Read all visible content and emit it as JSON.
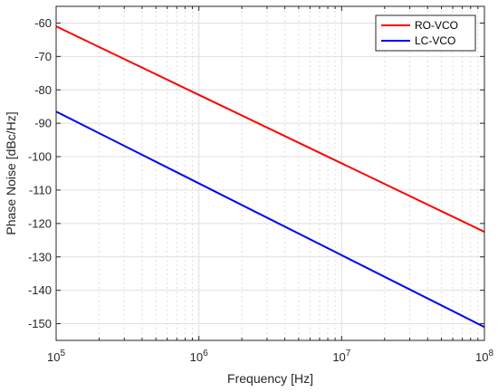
{
  "chart_data": {
    "type": "line",
    "xscale": "log",
    "xlim": [
      100000,
      100000000
    ],
    "ylim": [
      -155,
      -55
    ],
    "xlabel": "Frequency [Hz]",
    "ylabel": "Phase Noise [dBc/Hz]",
    "grid": true,
    "legend_position": "top-right",
    "x_ticks": [
      {
        "value": 100000,
        "base": "10",
        "exp": "5"
      },
      {
        "value": 1000000,
        "base": "10",
        "exp": "6"
      },
      {
        "value": 10000000,
        "base": "10",
        "exp": "7"
      },
      {
        "value": 100000000,
        "base": "10",
        "exp": "8"
      }
    ],
    "y_ticks": [
      {
        "value": -60,
        "label": "-60"
      },
      {
        "value": -70,
        "label": "-70"
      },
      {
        "value": -80,
        "label": "-80"
      },
      {
        "value": -90,
        "label": "-90"
      },
      {
        "value": -100,
        "label": "-100"
      },
      {
        "value": -110,
        "label": "-110"
      },
      {
        "value": -120,
        "label": "-120"
      },
      {
        "value": -130,
        "label": "-130"
      },
      {
        "value": -140,
        "label": "-140"
      },
      {
        "value": -150,
        "label": "-150"
      }
    ],
    "series": [
      {
        "name": "RO-VCO",
        "color": "#ff0000",
        "x": [
          100000,
          1000000,
          10000000,
          100000000
        ],
        "y": [
          -61,
          -81.5,
          -102,
          -122.5
        ]
      },
      {
        "name": "LC-VCO",
        "color": "#0000ff",
        "x": [
          100000,
          1000000,
          10000000,
          100000000
        ],
        "y": [
          -86.5,
          -108,
          -129.5,
          -151
        ]
      }
    ]
  }
}
